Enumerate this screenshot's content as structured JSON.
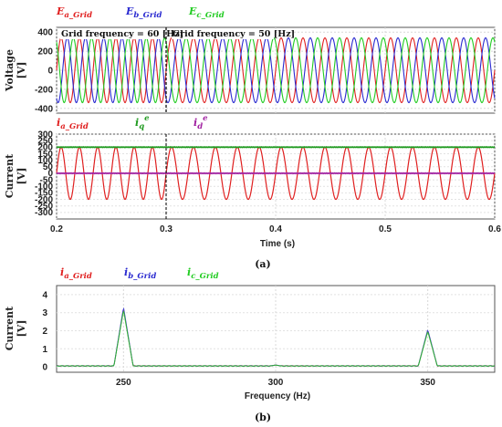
{
  "chart_data": [
    {
      "type": "line",
      "panel": "voltage",
      "ylabel": "Voltage [V]",
      "ylabel_line1": "Voltage",
      "ylabel_line2": "[V]",
      "ylim": [
        -450,
        450
      ],
      "yticks": [
        "400",
        "200",
        "0",
        "-200",
        "-400"
      ],
      "ytick_values": [
        400,
        200,
        0,
        -200,
        -400
      ],
      "xlim": [
        0.2,
        0.6
      ],
      "amplitude": 340,
      "frequency_change_time": 0.3,
      "frequencies_hz": [
        60,
        50
      ],
      "annotations": [
        "Grid frequency = 60 [Hz]",
        "Grid frequency = 50 [Hz]"
      ],
      "series": [
        {
          "name": "E_a_Grid",
          "base": "E",
          "sub": "a_Grid",
          "color": "#e02020",
          "phase_deg": 0
        },
        {
          "name": "E_b_Grid",
          "base": "E",
          "sub": "b_Grid",
          "color": "#2a2ad0",
          "phase_deg": -120
        },
        {
          "name": "E_c_Grid",
          "base": "E",
          "sub": "c_Grid",
          "color": "#22cc22",
          "phase_deg": 120
        }
      ]
    },
    {
      "type": "line",
      "panel": "current",
      "ylabel": "Current [V]",
      "ylabel_line1": "Current",
      "ylabel_line2": "[V]",
      "ylim": [
        -350,
        300
      ],
      "yticks": [
        "300",
        "250",
        "200",
        "150",
        "100",
        "50",
        "0",
        "-50",
        "-100",
        "-150",
        "-200",
        "-250",
        "-300"
      ],
      "ytick_values": [
        300,
        250,
        200,
        150,
        100,
        50,
        0,
        -50,
        -100,
        -150,
        -200,
        -250,
        -300
      ],
      "xlim": [
        0.2,
        0.6
      ],
      "xticks": [
        "0.2",
        "0.3",
        "0.4",
        "0.5",
        "0.6"
      ],
      "xtick_values": [
        0.2,
        0.3,
        0.4,
        0.5,
        0.6
      ],
      "xlabel": "Time (s)",
      "series": [
        {
          "name": "i_a_Grid",
          "base": "i",
          "sub": "a_Grid",
          "sup": "",
          "color": "#e02020",
          "kind": "sine",
          "amplitude": 200
        },
        {
          "name": "i_q^e",
          "base": "i",
          "sub": "q",
          "sup": "e",
          "color": "#1f9a1f",
          "kind": "dc",
          "value": 200
        },
        {
          "name": "i_d^e",
          "base": "i",
          "sub": "d",
          "sup": "e",
          "color": "#a020a0",
          "kind": "dc",
          "value": 0
        }
      ]
    },
    {
      "type": "line",
      "panel": "spectrum",
      "ylabel": "Current [V]",
      "ylabel_line1": "Current",
      "ylabel_line2": "[V]",
      "xlabel": "Frequency (Hz)",
      "xlim": [
        228,
        372
      ],
      "ylim": [
        -0.3,
        4.5
      ],
      "xticks": [
        "250",
        "300",
        "350"
      ],
      "xtick_values": [
        250,
        300,
        350
      ],
      "yticks": [
        "4",
        "3",
        "2",
        "1",
        "0"
      ],
      "ytick_values": [
        4,
        3,
        2,
        1,
        0
      ],
      "peaks": [
        {
          "x": 250,
          "y": 3.2
        },
        {
          "x": 300,
          "y": 0.1
        },
        {
          "x": 350,
          "y": 2.0
        }
      ],
      "series": [
        {
          "name": "i_a_Grid",
          "base": "i",
          "sub": "a_Grid",
          "color": "#e02020"
        },
        {
          "name": "i_b_Grid",
          "base": "i",
          "sub": "b_Grid",
          "color": "#2a2ad0"
        },
        {
          "name": "i_c_Grid",
          "base": "i",
          "sub": "c_Grid",
          "color": "#22cc22"
        }
      ]
    }
  ],
  "captions": {
    "a": "(a)",
    "b": "(b)"
  }
}
